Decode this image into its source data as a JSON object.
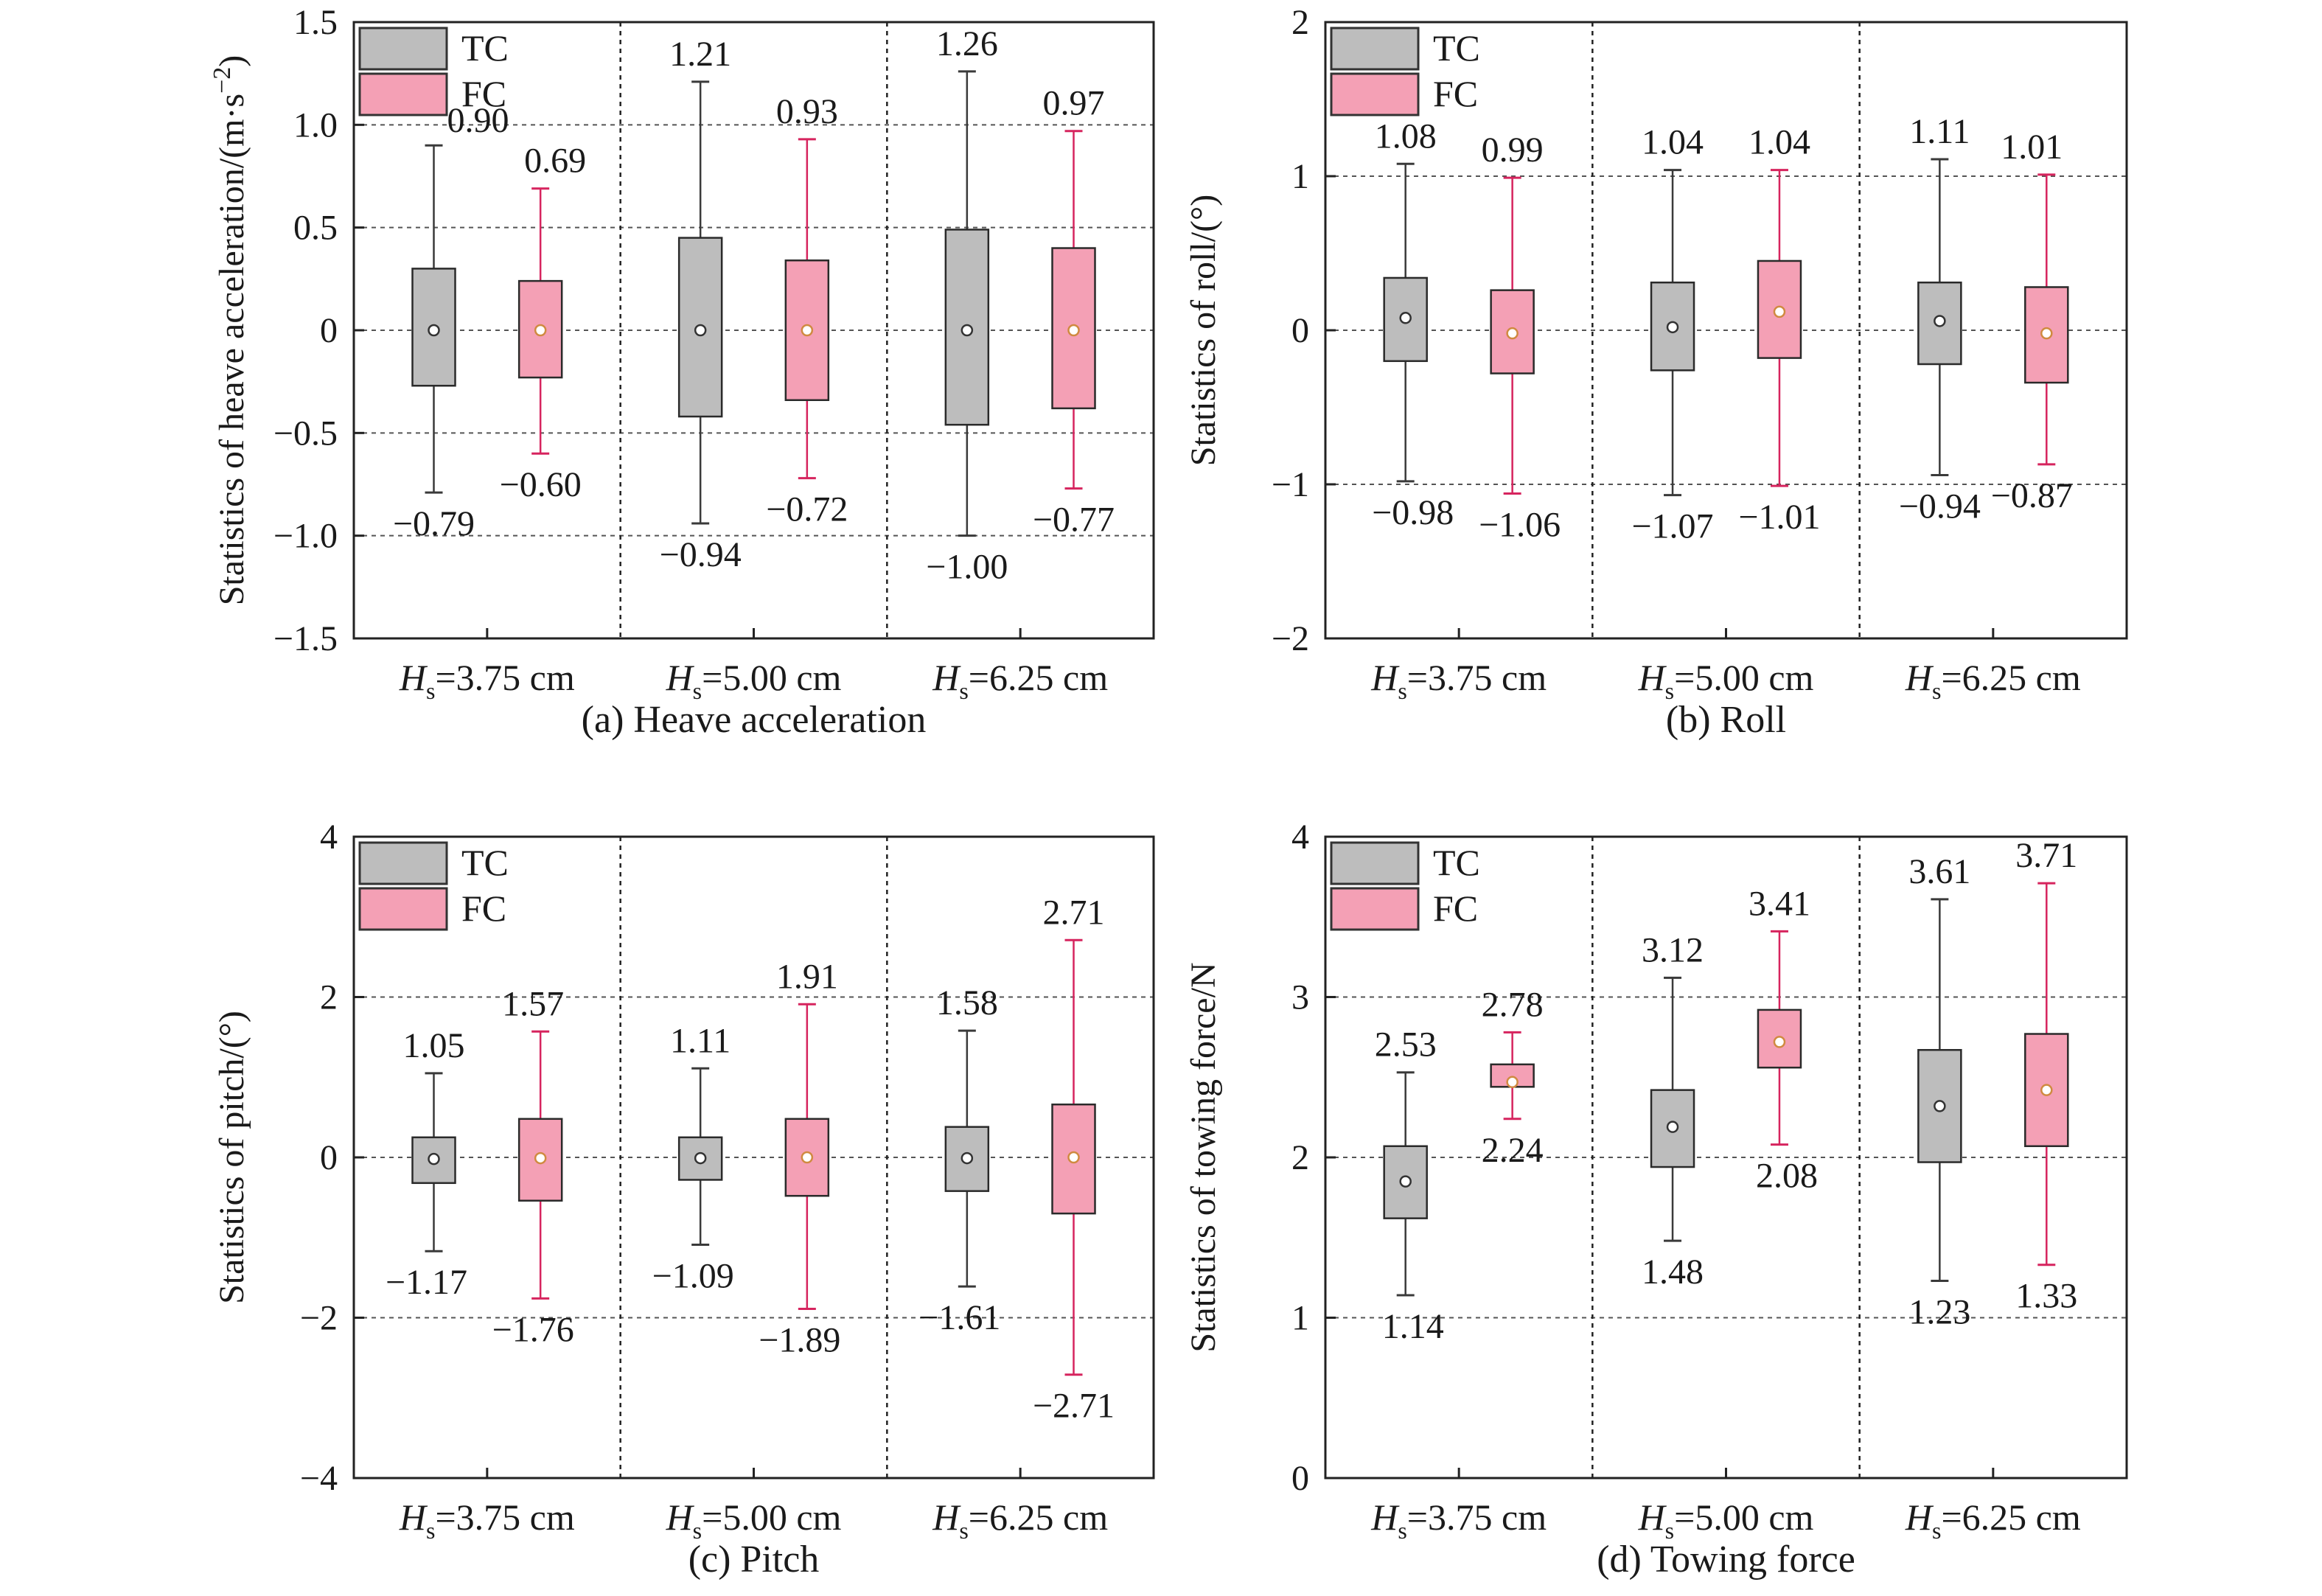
{
  "colors": {
    "TC": "#bdbdbd",
    "FC": "#f4a0b5",
    "TC_stroke": "#3a3a3a",
    "FC_stroke": "#d6245e",
    "grid": "#555555"
  },
  "legend": [
    "TC",
    "FC"
  ],
  "xcat_parts": [
    {
      "sym": "H",
      "sub": "s",
      "rest": "=3.75 cm"
    },
    {
      "sym": "H",
      "sub": "s",
      "rest": "=5.00 cm"
    },
    {
      "sym": "H",
      "sub": "s",
      "rest": "=6.25 cm"
    }
  ],
  "chart_data": [
    {
      "type": "box",
      "panel": "(a)",
      "caption": "(a) Heave acceleration",
      "ylabel": "Statistics of heave acceleration/(m·s",
      "ylabel_sup": "−2",
      "ylabel_end": ")",
      "ylim": [
        -1.5,
        1.5
      ],
      "yticks": [
        1.5,
        1.0,
        0.5,
        0,
        -0.5,
        -1.0,
        -1.5
      ],
      "yticklabels": [
        "1.5",
        "1.0",
        "0.5",
        "0",
        "−0.5",
        "−1.0",
        "−1.5"
      ],
      "grid": true,
      "categories": [
        "Hs=3.75 cm",
        "Hs=5.00 cm",
        "Hs=6.25 cm"
      ],
      "series": [
        {
          "name": "TC",
          "boxes": [
            {
              "min": -0.79,
              "q1": -0.27,
              "median": 0,
              "q3": 0.3,
              "max": 0.9,
              "min_label": "−0.79",
              "max_label": "0.90"
            },
            {
              "min": -0.94,
              "q1": -0.42,
              "median": 0,
              "q3": 0.45,
              "max": 1.21,
              "min_label": "−0.94",
              "max_label": "1.21"
            },
            {
              "min": -1.0,
              "q1": -0.46,
              "median": 0,
              "q3": 0.49,
              "max": 1.26,
              "min_label": "−1.00",
              "max_label": "1.26"
            }
          ]
        },
        {
          "name": "FC",
          "boxes": [
            {
              "min": -0.6,
              "q1": -0.23,
              "median": 0,
              "q3": 0.24,
              "max": 0.69,
              "min_label": "−0.60",
              "max_label": "0.69"
            },
            {
              "min": -0.72,
              "q1": -0.34,
              "median": 0,
              "q3": 0.34,
              "max": 0.93,
              "min_label": "−0.72",
              "max_label": "0.93"
            },
            {
              "min": -0.77,
              "q1": -0.38,
              "median": 0,
              "q3": 0.4,
              "max": 0.97,
              "min_label": "−0.77",
              "max_label": "0.97"
            }
          ]
        }
      ]
    },
    {
      "type": "box",
      "panel": "(b)",
      "caption": "(b) Roll",
      "ylabel": "Statistics of roll/(°)",
      "ylim": [
        -2,
        2
      ],
      "yticks": [
        2,
        1,
        0,
        -1,
        -2
      ],
      "yticklabels": [
        "2",
        "1",
        "0",
        "−1",
        "−2"
      ],
      "grid": true,
      "categories": [
        "Hs=3.75 cm",
        "Hs=5.00 cm",
        "Hs=6.25 cm"
      ],
      "series": [
        {
          "name": "TC",
          "boxes": [
            {
              "min": -0.98,
              "q1": -0.2,
              "median": 0.08,
              "q3": 0.34,
              "max": 1.08,
              "min_label": "−0.98",
              "max_label": "1.08"
            },
            {
              "min": -1.07,
              "q1": -0.26,
              "median": 0.02,
              "q3": 0.31,
              "max": 1.04,
              "min_label": "−1.07",
              "max_label": "1.04"
            },
            {
              "min": -0.94,
              "q1": -0.22,
              "median": 0.06,
              "q3": 0.31,
              "max": 1.11,
              "min_label": "−0.94",
              "max_label": "1.11"
            }
          ]
        },
        {
          "name": "FC",
          "boxes": [
            {
              "min": -1.06,
              "q1": -0.28,
              "median": -0.02,
              "q3": 0.26,
              "max": 0.99,
              "min_label": "−1.06",
              "max_label": "0.99"
            },
            {
              "min": -1.01,
              "q1": -0.18,
              "median": 0.12,
              "q3": 0.45,
              "max": 1.04,
              "min_label": "−1.01",
              "max_label": "1.04"
            },
            {
              "min": -0.87,
              "q1": -0.34,
              "median": -0.02,
              "q3": 0.28,
              "max": 1.01,
              "min_label": "−0.87",
              "max_label": "1.01"
            }
          ]
        }
      ]
    },
    {
      "type": "box",
      "panel": "(c)",
      "caption": "(c) Pitch",
      "ylabel": "Statistics of pitch/(°)",
      "ylim": [
        -4,
        4
      ],
      "yticks": [
        4,
        2,
        0,
        -2,
        -4
      ],
      "yticklabels": [
        "4",
        "2",
        "0",
        "−2",
        "−4"
      ],
      "grid": true,
      "categories": [
        "Hs=3.75 cm",
        "Hs=5.00 cm",
        "Hs=6.25 cm"
      ],
      "series": [
        {
          "name": "TC",
          "boxes": [
            {
              "min": -1.17,
              "q1": -0.32,
              "median": -0.02,
              "q3": 0.25,
              "max": 1.05,
              "min_label": "−1.17",
              "max_label": "1.05"
            },
            {
              "min": -1.09,
              "q1": -0.28,
              "median": -0.01,
              "q3": 0.25,
              "max": 1.11,
              "min_label": "−1.09",
              "max_label": "1.11"
            },
            {
              "min": -1.61,
              "q1": -0.42,
              "median": -0.01,
              "q3": 0.38,
              "max": 1.58,
              "min_label": "−1.61",
              "max_label": "1.58"
            }
          ]
        },
        {
          "name": "FC",
          "boxes": [
            {
              "min": -1.76,
              "q1": -0.54,
              "median": -0.01,
              "q3": 0.48,
              "max": 1.57,
              "min_label": "−1.76",
              "max_label": "1.57"
            },
            {
              "min": -1.89,
              "q1": -0.48,
              "median": 0.0,
              "q3": 0.48,
              "max": 1.91,
              "min_label": "−1.89",
              "max_label": "1.91"
            },
            {
              "min": -2.71,
              "q1": -0.7,
              "median": 0.0,
              "q3": 0.66,
              "max": 2.71,
              "min_label": "−2.71",
              "max_label": "2.71"
            }
          ]
        }
      ]
    },
    {
      "type": "box",
      "panel": "(d)",
      "caption": "(d) Towing force",
      "ylabel": "Statistics of towing force/N",
      "ylim": [
        0,
        4
      ],
      "yticks": [
        4,
        3,
        2,
        1,
        0
      ],
      "yticklabels": [
        "4",
        "3",
        "2",
        "1",
        "0"
      ],
      "grid": true,
      "categories": [
        "Hs=3.75 cm",
        "Hs=5.00 cm",
        "Hs=6.25 cm"
      ],
      "series": [
        {
          "name": "TC",
          "boxes": [
            {
              "min": 1.14,
              "q1": 1.62,
              "median": 1.85,
              "q3": 2.07,
              "max": 2.53,
              "min_label": "1.14",
              "max_label": "2.53"
            },
            {
              "min": 1.48,
              "q1": 1.94,
              "median": 2.19,
              "q3": 2.42,
              "max": 3.12,
              "min_label": "1.48",
              "max_label": "3.12"
            },
            {
              "min": 1.23,
              "q1": 1.97,
              "median": 2.32,
              "q3": 2.67,
              "max": 3.61,
              "min_label": "1.23",
              "max_label": "3.61"
            }
          ]
        },
        {
          "name": "FC",
          "boxes": [
            {
              "min": 2.24,
              "q1": 2.44,
              "median": 2.47,
              "q3": 2.58,
              "max": 2.78,
              "min_label": "2.24",
              "max_label": "2.78"
            },
            {
              "min": 2.08,
              "q1": 2.56,
              "median": 2.72,
              "q3": 2.92,
              "max": 3.41,
              "min_label": "2.08",
              "max_label": "3.41"
            },
            {
              "min": 1.33,
              "q1": 2.07,
              "median": 2.42,
              "q3": 2.77,
              "max": 3.71,
              "min_label": "1.33",
              "max_label": "3.71"
            }
          ]
        }
      ]
    }
  ]
}
